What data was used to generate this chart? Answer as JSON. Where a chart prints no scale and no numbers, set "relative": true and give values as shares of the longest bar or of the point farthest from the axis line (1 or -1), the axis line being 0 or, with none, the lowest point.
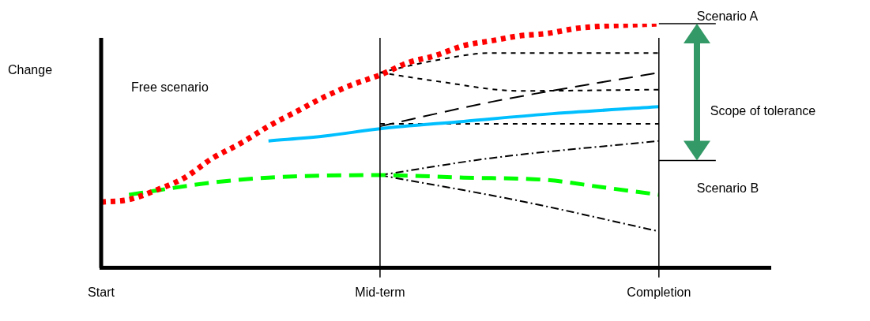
{
  "chart_data": {
    "type": "line",
    "relative": true,
    "ylabel": "Change",
    "grid": false,
    "legend": false,
    "marker": "none",
    "categories": [
      "Start",
      null,
      null,
      null,
      null,
      null,
      null,
      null,
      null,
      null,
      "Mid-term",
      null,
      null,
      null,
      null,
      null,
      null,
      null,
      null,
      null,
      "Completion",
      null,
      null,
      null,
      null
    ],
    "annotations": [
      "Free scenario",
      "Scope of tolerance"
    ],
    "ref_lines": [
      {
        "axis": "x",
        "value": "Mid-term",
        "color": "#000000"
      },
      {
        "axis": "x",
        "value": "Completion",
        "color": "#000000"
      },
      {
        "axis": "y",
        "value": 1,
        "label": "Scenario A",
        "color": "#000000"
      },
      {
        "axis": "y",
        "value": 0.44,
        "label": "Scenario B",
        "color": "#000000"
      }
    ],
    "series": [
      {
        "color": "#ff0000",
        "line_style": "dotted",
        "values": [
          0.27,
          0.28,
          0.32,
          0.37,
          0.45,
          0.51,
          0.58,
          0.64,
          0.7,
          0.75,
          0.79,
          0.84,
          0.87,
          0.91,
          0.93,
          0.95,
          0.96,
          0.98,
          0.99,
          0.995,
          1,
          null,
          null,
          null,
          null
        ]
      },
      {
        "color": "#00ff00",
        "line_style": "dashed",
        "values": [
          null,
          0.3,
          null,
          null,
          0.35,
          null,
          0.37,
          null,
          null,
          null,
          0.38,
          null,
          null,
          0.37,
          null,
          null,
          0.36,
          null,
          0.33,
          null,
          0.3,
          null,
          null,
          null,
          null
        ]
      },
      {
        "color": "#00bfff",
        "line_style": "solid",
        "values": [
          null,
          null,
          null,
          null,
          null,
          null,
          0.52,
          null,
          0.54,
          null,
          0.57,
          null,
          null,
          0.6,
          null,
          null,
          0.63,
          null,
          null,
          null,
          0.66,
          null,
          null,
          null,
          null
        ]
      },
      {
        "color": "#000000",
        "line_style": "dotted",
        "values": [
          null,
          null,
          null,
          null,
          null,
          null,
          null,
          null,
          null,
          null,
          0.8,
          null,
          0.85,
          null,
          0.88,
          null,
          null,
          null,
          null,
          null,
          0.88,
          null,
          null,
          null,
          null
        ]
      },
      {
        "color": "#000000",
        "line_style": "dotted",
        "values": [
          null,
          null,
          null,
          null,
          null,
          null,
          null,
          null,
          null,
          null,
          0.8,
          null,
          0.765,
          null,
          null,
          0.725,
          null,
          null,
          null,
          null,
          0.73,
          null,
          null,
          null,
          null
        ]
      },
      {
        "color": "#000000",
        "line_style": "dashed",
        "values": [
          null,
          null,
          null,
          null,
          null,
          null,
          null,
          null,
          null,
          null,
          0.58,
          null,
          null,
          null,
          0.68,
          null,
          null,
          null,
          null,
          null,
          0.8,
          null,
          null,
          null,
          null
        ]
      },
      {
        "color": "#000000",
        "line_style": "dotted",
        "values": [
          null,
          null,
          null,
          null,
          null,
          null,
          null,
          null,
          null,
          null,
          0.59,
          null,
          null,
          null,
          null,
          null,
          null,
          null,
          null,
          null,
          0.59,
          null,
          null,
          null,
          null
        ]
      },
      {
        "color": "#000000",
        "line_style": "dashdot",
        "values": [
          null,
          null,
          null,
          null,
          null,
          null,
          null,
          null,
          null,
          null,
          0.38,
          null,
          null,
          null,
          0.45,
          null,
          null,
          null,
          null,
          null,
          0.52,
          null,
          null,
          null,
          null
        ]
      },
      {
        "color": "#000000",
        "line_style": "dashdot",
        "values": [
          null,
          null,
          null,
          null,
          null,
          null,
          null,
          null,
          null,
          null,
          0.38,
          null,
          null,
          null,
          null,
          0.275,
          null,
          null,
          null,
          null,
          0.15,
          null,
          null,
          null,
          null
        ]
      }
    ]
  }
}
